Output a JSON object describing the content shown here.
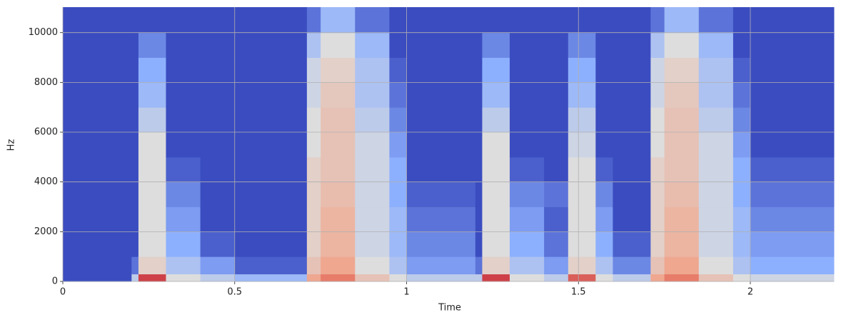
{
  "chart_data": {
    "type": "spectrogram",
    "x_label": "Time",
    "y_label": "Hz",
    "xlim": [
      0,
      2.243
    ],
    "ylim": [
      0,
      11025
    ],
    "xticks": [
      0,
      0.5,
      1,
      1.5,
      2
    ],
    "yticks": [
      0,
      2000,
      4000,
      6000,
      8000,
      10000
    ],
    "grid": true,
    "colormap": [
      "#3b4cc0",
      "#8db0fe",
      "#dddddd",
      "#f49a7b",
      "#b40426"
    ],
    "x_edges": [
      0,
      0.2,
      0.22,
      0.3,
      0.4,
      0.5,
      0.71,
      0.75,
      0.85,
      0.95,
      1.0,
      1.2,
      1.22,
      1.3,
      1.4,
      1.47,
      1.55,
      1.6,
      1.71,
      1.75,
      1.85,
      1.95,
      2.0,
      2.243
    ],
    "y_edges": [
      0,
      300,
      1000,
      2000,
      3000,
      4000,
      5000,
      6000,
      7000,
      8000,
      9000,
      10000,
      11025
    ],
    "values": [
      [
        0,
        0,
        0,
        0,
        0,
        0,
        0,
        0,
        0,
        0,
        0,
        0
      ],
      [
        0.4,
        0.1,
        0,
        0,
        0,
        0,
        0,
        0,
        0,
        0,
        0,
        0
      ],
      [
        0.9,
        0.55,
        0.5,
        0.5,
        0.5,
        0.5,
        0.5,
        0.4,
        0.3,
        0.25,
        0.15,
        0
      ],
      [
        0.5,
        0.35,
        0.25,
        0.2,
        0.15,
        0.05,
        0,
        0,
        0,
        0,
        0,
        0
      ],
      [
        0.4,
        0.2,
        0.05,
        0,
        0,
        0,
        0,
        0,
        0,
        0,
        0,
        0
      ],
      [
        0.3,
        0.05,
        0,
        0,
        0,
        0,
        0,
        0,
        0,
        0,
        0,
        0
      ],
      [
        0.7,
        0.6,
        0.55,
        0.55,
        0.55,
        0.55,
        0.5,
        0.5,
        0.45,
        0.45,
        0.35,
        0.1
      ],
      [
        0.8,
        0.7,
        0.65,
        0.65,
        0.62,
        0.6,
        0.6,
        0.6,
        0.58,
        0.55,
        0.5,
        0.3
      ],
      [
        0.6,
        0.5,
        0.45,
        0.45,
        0.45,
        0.45,
        0.45,
        0.4,
        0.35,
        0.35,
        0.3,
        0.1
      ],
      [
        0.5,
        0.35,
        0.3,
        0.3,
        0.25,
        0.25,
        0.2,
        0.15,
        0.1,
        0.05,
        0,
        0
      ],
      [
        0.4,
        0.2,
        0.15,
        0.1,
        0.05,
        0,
        0,
        0,
        0,
        0,
        0,
        0
      ],
      [
        0.4,
        0.1,
        0,
        0,
        0,
        0,
        0,
        0,
        0,
        0,
        0,
        0
      ],
      [
        0.9,
        0.55,
        0.5,
        0.5,
        0.5,
        0.5,
        0.5,
        0.4,
        0.3,
        0.25,
        0.15,
        0
      ],
      [
        0.5,
        0.35,
        0.25,
        0.2,
        0.15,
        0.05,
        0,
        0,
        0,
        0,
        0,
        0
      ],
      [
        0.4,
        0.2,
        0.1,
        0.05,
        0.1,
        0,
        0,
        0,
        0,
        0,
        0,
        0
      ],
      [
        0.85,
        0.55,
        0.5,
        0.5,
        0.5,
        0.5,
        0.45,
        0.4,
        0.3,
        0.25,
        0.15,
        0
      ],
      [
        0.5,
        0.35,
        0.25,
        0.2,
        0.15,
        0.05,
        0,
        0,
        0,
        0,
        0,
        0
      ],
      [
        0.4,
        0.15,
        0.05,
        0,
        0,
        0,
        0,
        0,
        0,
        0,
        0,
        0
      ],
      [
        0.7,
        0.6,
        0.55,
        0.55,
        0.55,
        0.55,
        0.5,
        0.5,
        0.45,
        0.45,
        0.35,
        0.1
      ],
      [
        0.8,
        0.7,
        0.65,
        0.65,
        0.62,
        0.6,
        0.6,
        0.6,
        0.58,
        0.55,
        0.5,
        0.3
      ],
      [
        0.6,
        0.5,
        0.45,
        0.45,
        0.45,
        0.45,
        0.45,
        0.4,
        0.35,
        0.35,
        0.3,
        0.1
      ],
      [
        0.5,
        0.35,
        0.3,
        0.3,
        0.25,
        0.25,
        0.2,
        0.15,
        0.1,
        0.05,
        0,
        0
      ],
      [
        0.45,
        0.25,
        0.2,
        0.15,
        0.1,
        0.05,
        0,
        0,
        0,
        0,
        0,
        0
      ]
    ]
  }
}
